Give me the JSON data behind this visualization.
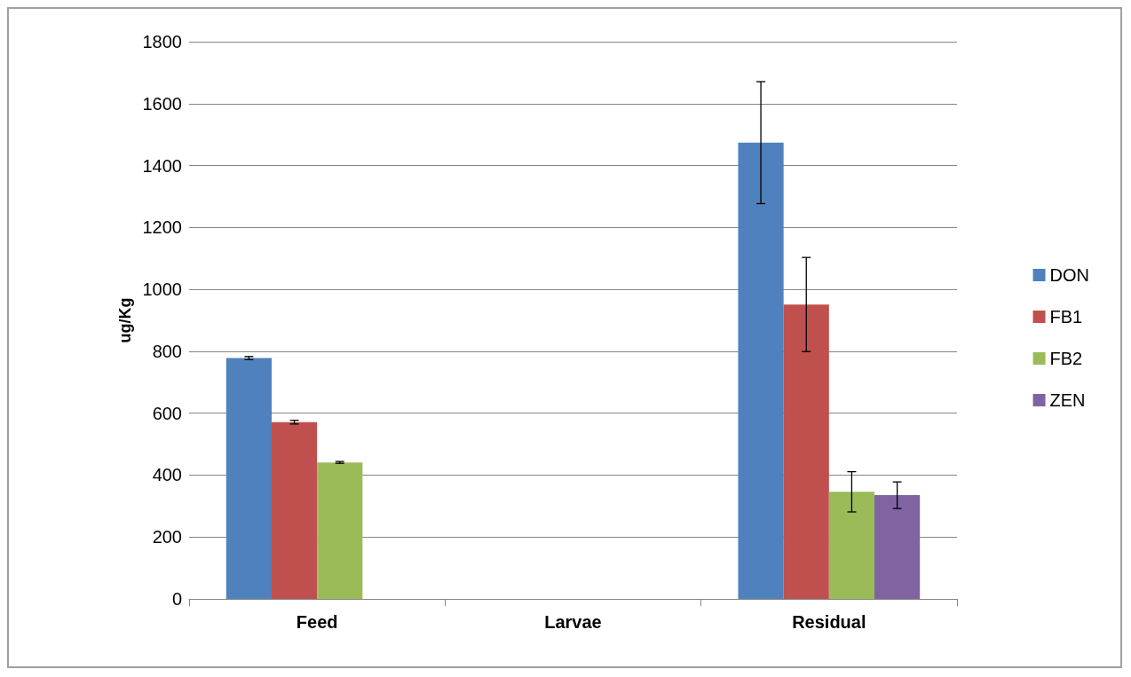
{
  "chart_data": {
    "type": "bar",
    "ylabel": "ug/Kg",
    "categories": [
      "Feed",
      "Larvae",
      "Residual"
    ],
    "series": [
      {
        "name": "DON",
        "color": "#4f81bd",
        "values": [
          778,
          null,
          1474
        ],
        "errors": [
          5,
          null,
          197
        ]
      },
      {
        "name": "FB1",
        "color": "#c0504d",
        "values": [
          571,
          null,
          951
        ],
        "errors": [
          6,
          null,
          152
        ]
      },
      {
        "name": "FB2",
        "color": "#9bbb59",
        "values": [
          441,
          null,
          346
        ],
        "errors": [
          3,
          null,
          65
        ]
      },
      {
        "name": "ZEN",
        "color": "#8064a2",
        "values": [
          null,
          null,
          335
        ],
        "errors": [
          null,
          null,
          43
        ]
      }
    ],
    "ylim": [
      0,
      1800
    ],
    "yticks": [
      0,
      200,
      400,
      600,
      800,
      1000,
      1200,
      1400,
      1600,
      1800
    ],
    "grid": "y",
    "legend": "right"
  }
}
